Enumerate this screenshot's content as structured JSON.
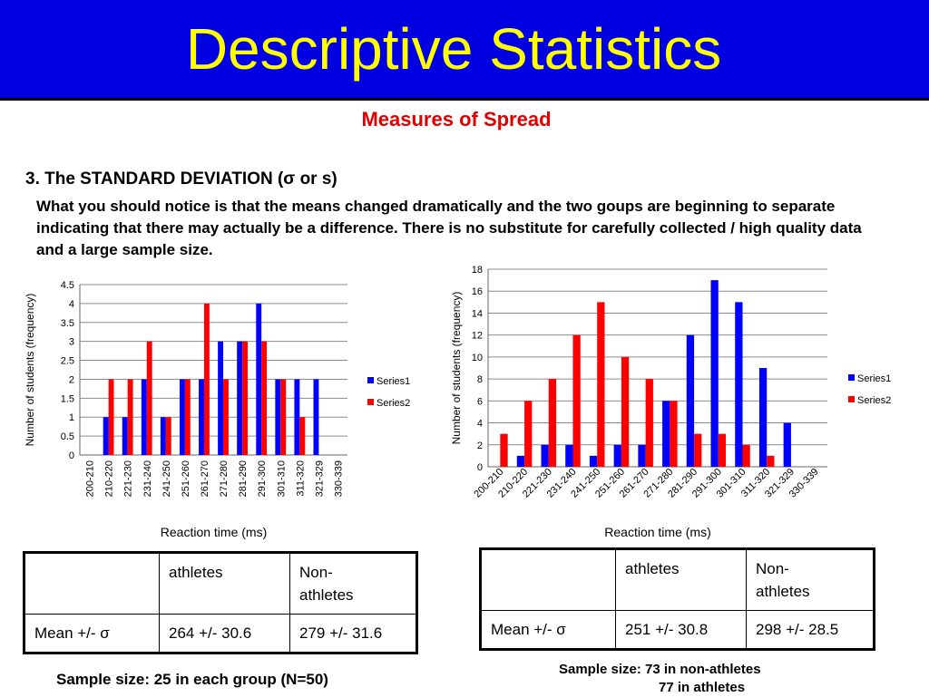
{
  "slide": {
    "title": "Descriptive Statistics",
    "subtitle": "Measures of Spread",
    "heading": "3. The STANDARD DEVIATION (σ or s)",
    "paragraph": "What you should notice is that the means changed dramatically and the two goups are beginning to separate indicating that there may actually be a difference. There is no substitute for carefully collected / high quality data and a large sample size."
  },
  "colors": {
    "banner": "#0000e0",
    "title": "#ffff00",
    "subtitle": "#e00000",
    "series1": "#0000ff",
    "series2": "#ff0000"
  },
  "chart_data": [
    {
      "type": "bar",
      "title": "",
      "xlabel": "Reaction time (ms)",
      "ylabel": "Number of students (frequency)",
      "ylim": [
        0,
        4.5
      ],
      "yticks": [
        "0",
        "0.5",
        "1",
        "1.5",
        "2",
        "2.5",
        "3",
        "3.5",
        "4",
        "4.5"
      ],
      "grid": true,
      "legend_position": "right",
      "categories": [
        "200-210",
        "210-220",
        "221-230",
        "231-240",
        "241-250",
        "251-260",
        "261-270",
        "271-280",
        "281-290",
        "291-300",
        "301-310",
        "311-320",
        "321-329",
        "330-339"
      ],
      "series": [
        {
          "name": "Series1",
          "values": [
            0,
            1,
            1,
            2,
            1,
            2,
            2,
            3,
            3,
            4,
            2,
            2,
            2,
            0
          ]
        },
        {
          "name": "Series2",
          "values": [
            0,
            2,
            2,
            3,
            1,
            2,
            4,
            2,
            3,
            3,
            2,
            1,
            0,
            0
          ]
        }
      ]
    },
    {
      "type": "bar",
      "title": "",
      "xlabel": "Reaction time (ms)",
      "ylabel": "Number of students (frequency)",
      "ylim": [
        0,
        18
      ],
      "yticks": [
        "0",
        "2",
        "4",
        "6",
        "8",
        "10",
        "12",
        "14",
        "16",
        "18"
      ],
      "grid": true,
      "legend_position": "right",
      "categories": [
        "200-210",
        "210-220",
        "221-230",
        "231-240",
        "241-250",
        "251-260",
        "261-270",
        "271-280",
        "281-290",
        "291-300",
        "301-310",
        "311-320",
        "321-329",
        "330-339"
      ],
      "series": [
        {
          "name": "Series1",
          "values": [
            0,
            1,
            2,
            2,
            1,
            2,
            2,
            6,
            12,
            17,
            15,
            9,
            4,
            0
          ]
        },
        {
          "name": "Series2",
          "values": [
            3,
            6,
            8,
            12,
            15,
            10,
            8,
            6,
            3,
            3,
            2,
            1,
            0,
            0
          ]
        }
      ]
    }
  ],
  "table1": {
    "headers": [
      "",
      "athletes",
      "Non-\nathletes"
    ],
    "row": [
      "Mean +/- σ",
      "264 +/- 30.6",
      "279 +/- 31.6"
    ]
  },
  "table2": {
    "headers": [
      "",
      "athletes",
      "Non-\nathletes"
    ],
    "row": [
      "Mean +/- σ",
      "251 +/- 30.8",
      "298 +/- 28.5"
    ]
  },
  "footnote1": "Sample size: 25 in each group (N=50)",
  "footnote2": {
    "line1": "Sample size: 73 in non-athletes",
    "line2": "77 in athletes"
  }
}
